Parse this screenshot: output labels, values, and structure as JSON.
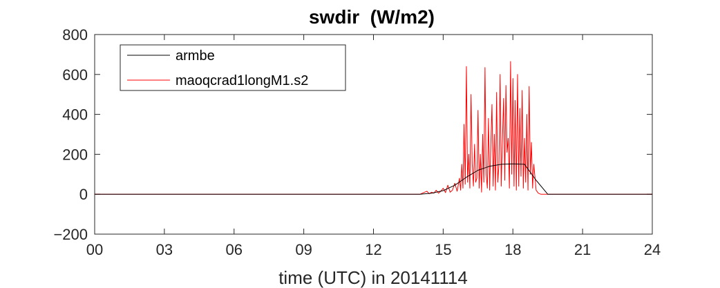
{
  "chart_data": {
    "type": "line",
    "title": "swdir  (W/m2)",
    "xlabel": "time (UTC) in 20141114",
    "ylabel": "",
    "xlim": [
      0,
      24
    ],
    "ylim": [
      -200,
      800
    ],
    "x_ticks": [
      "00",
      "03",
      "06",
      "09",
      "12",
      "15",
      "18",
      "21",
      "24"
    ],
    "x_tick_values": [
      0,
      3,
      6,
      9,
      12,
      15,
      18,
      21,
      24
    ],
    "y_ticks": [
      "−200",
      "0",
      "200",
      "400",
      "600",
      "800"
    ],
    "y_tick_values": [
      -200,
      0,
      200,
      400,
      600,
      800
    ],
    "grid": false,
    "legend_position": "top-left",
    "series": [
      {
        "name": "armbe",
        "color": "#000000",
        "x": [
          0,
          14.0,
          14.5,
          15.0,
          15.5,
          16.0,
          16.5,
          17.0,
          17.5,
          18.0,
          18.5,
          19.0,
          19.5,
          24
        ],
        "y": [
          0,
          0,
          5,
          18,
          45,
          85,
          120,
          140,
          150,
          152,
          150,
          70,
          0,
          0
        ]
      },
      {
        "name": "maoqcrad1longM1.s2",
        "color": "#ff0000",
        "x": [
          0,
          14.0,
          14.3,
          14.4,
          14.5,
          14.6,
          14.7,
          14.8,
          14.9,
          15.0,
          15.1,
          15.2,
          15.3,
          15.4,
          15.5,
          15.6,
          15.7,
          15.75,
          15.8,
          15.85,
          15.9,
          15.95,
          16.0,
          16.05,
          16.1,
          16.15,
          16.2,
          16.25,
          16.3,
          16.35,
          16.4,
          16.45,
          16.5,
          16.55,
          16.6,
          16.65,
          16.7,
          16.75,
          16.8,
          16.85,
          16.9,
          16.95,
          17.0,
          17.05,
          17.1,
          17.15,
          17.2,
          17.25,
          17.3,
          17.35,
          17.4,
          17.45,
          17.5,
          17.55,
          17.6,
          17.65,
          17.7,
          17.75,
          17.8,
          17.85,
          17.9,
          17.95,
          18.0,
          18.05,
          18.1,
          18.15,
          18.2,
          18.25,
          18.3,
          18.35,
          18.4,
          18.45,
          18.5,
          18.55,
          18.6,
          18.65,
          18.7,
          18.75,
          18.8,
          18.85,
          18.9,
          19.0,
          19.1,
          19.2,
          19.3,
          24
        ],
        "y": [
          0,
          0,
          15,
          2,
          10,
          5,
          20,
          5,
          15,
          30,
          8,
          45,
          10,
          20,
          55,
          15,
          80,
          20,
          150,
          30,
          350,
          50,
          640,
          60,
          200,
          30,
          500,
          150,
          40,
          250,
          60,
          80,
          420,
          30,
          200,
          10,
          300,
          60,
          635,
          100,
          30,
          380,
          20,
          250,
          450,
          40,
          300,
          20,
          510,
          60,
          150,
          600,
          40,
          270,
          480,
          70,
          545,
          210,
          280,
          30,
          665,
          100,
          580,
          40,
          470,
          20,
          600,
          40,
          430,
          90,
          520,
          30,
          280,
          60,
          400,
          20,
          540,
          100,
          260,
          30,
          150,
          20,
          5,
          0,
          0,
          0
        ]
      }
    ]
  }
}
